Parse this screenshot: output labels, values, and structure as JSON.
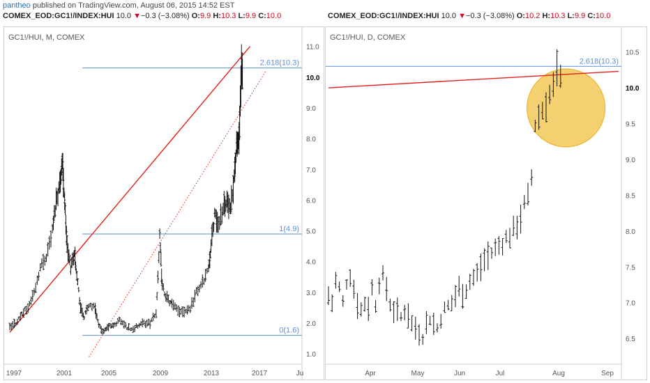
{
  "attribution": {
    "user": "pantheo",
    "text": " published on TradingView.com, August 06, 2015 14:52 EST"
  },
  "left_header": {
    "symbol": "COMEX_EOD:GC1!/INDEX:HUI",
    "last": "10.0",
    "change": "−0.3 (−3.08%)",
    "o_label": "O:",
    "o_val": "9.9",
    "h_label": "H:",
    "h_val": "10.3",
    "l_label": "L:",
    "l_val": "9.9",
    "c_label": "C:",
    "c_val": "10.0"
  },
  "right_header": {
    "symbol": "COMEX_EOD:GC1!/INDEX:HUI",
    "last": "10.0",
    "change": "−0.3 (−3.08%)",
    "o_label": "O:",
    "o_val": "10.2",
    "h_label": "H:",
    "h_val": "10.3",
    "l_label": "L:",
    "l_val": "9.9",
    "c_label": "C:",
    "c_val": "10.0"
  },
  "colors": {
    "price": "#111111",
    "trendline": "#e0201b",
    "fib": "#5b8fd6",
    "highlight": "#f0c040",
    "down_arrow": "#d0021b"
  },
  "chart_data": [
    {
      "type": "bar",
      "title": "GC1!/HUI, M, COMEX",
      "x_ticks": [
        "1997",
        "2001",
        "2005",
        "2009",
        "2013",
        "2017",
        "Ju"
      ],
      "y_ticks": [
        "1.0",
        "2.0",
        "3.0",
        "4.0",
        "5.0",
        "6.0",
        "7.0",
        "8.0",
        "9.0",
        "10.0",
        "11.0"
      ],
      "ylim": [
        0.8,
        11.4
      ],
      "last_price_label": "10.0",
      "fib_levels": [
        {
          "label": "2.618(10.3)",
          "value": 10.3
        },
        {
          "label": "1(4.9)",
          "value": 4.9
        },
        {
          "label": "0(1.6)",
          "value": 1.6
        }
      ],
      "trendline_solid": [
        [
          1996.5,
          1.7
        ],
        [
          2016.2,
          11.0
        ]
      ],
      "trendline_dotted": [
        [
          2003.0,
          0.9
        ],
        [
          2017.5,
          10.2
        ]
      ],
      "series": [
        {
          "values": [
            [
              1996.5,
              1.85
            ],
            [
              1997.0,
              2.0
            ],
            [
              1997.5,
              2.3
            ],
            [
              1998.0,
              2.5
            ],
            [
              1998.5,
              3.0
            ],
            [
              1999.0,
              3.8
            ],
            [
              1999.5,
              4.2
            ],
            [
              2000.0,
              5.0
            ],
            [
              2000.3,
              6.0
            ],
            [
              2000.6,
              6.5
            ],
            [
              2000.8,
              7.3
            ],
            [
              2001.0,
              6.0
            ],
            [
              2001.2,
              4.5
            ],
            [
              2001.5,
              3.8
            ],
            [
              2001.8,
              4.3
            ],
            [
              2002.0,
              3.6
            ],
            [
              2002.3,
              2.5
            ],
            [
              2002.6,
              2.2
            ],
            [
              2003.0,
              2.6
            ],
            [
              2003.5,
              2.5
            ],
            [
              2003.8,
              1.9
            ],
            [
              2004.2,
              1.7
            ],
            [
              2004.6,
              1.9
            ],
            [
              2005.0,
              1.9
            ],
            [
              2005.5,
              2.1
            ],
            [
              2006.0,
              1.9
            ],
            [
              2006.5,
              1.8
            ],
            [
              2007.0,
              1.9
            ],
            [
              2007.5,
              2.0
            ],
            [
              2008.0,
              2.0
            ],
            [
              2008.5,
              2.3
            ],
            [
              2008.8,
              4.8
            ],
            [
              2009.0,
              3.2
            ],
            [
              2009.4,
              2.8
            ],
            [
              2009.8,
              2.6
            ],
            [
              2010.3,
              2.4
            ],
            [
              2010.8,
              2.4
            ],
            [
              2011.3,
              2.5
            ],
            [
              2011.8,
              3.0
            ],
            [
              2012.3,
              3.3
            ],
            [
              2012.8,
              3.8
            ],
            [
              2013.0,
              4.5
            ],
            [
              2013.3,
              5.5
            ],
            [
              2013.6,
              5.2
            ],
            [
              2014.0,
              5.8
            ],
            [
              2014.3,
              6.0
            ],
            [
              2014.6,
              5.6
            ],
            [
              2014.9,
              6.8
            ],
            [
              2015.1,
              7.7
            ],
            [
              2015.3,
              8.0
            ],
            [
              2015.5,
              10.1
            ],
            [
              2015.6,
              10.0
            ]
          ]
        }
      ]
    },
    {
      "type": "bar",
      "title": "GC1!/HUI, D, COMEX",
      "x_ticks": [
        "Apr",
        "May",
        "Jun",
        "Jul",
        "Aug",
        "Sep"
      ],
      "y_ticks": [
        "6.5",
        "7.0",
        "7.5",
        "8.0",
        "8.5",
        "9.0",
        "9.5",
        "10.0",
        "10.5"
      ],
      "ylim": [
        6.2,
        10.75
      ],
      "last_price_label": "10.0",
      "fib_levels": [
        {
          "label": "2.618(10.3)",
          "value": 10.3
        }
      ],
      "trendline_solid": [
        [
          0,
          10.0
        ],
        [
          160,
          10.23
        ]
      ],
      "highlight": {
        "x_center": 131,
        "y_center": 9.72,
        "shape": "circle"
      },
      "series": [
        {
          "values": [
            [
              0,
              7.1
            ],
            [
              2,
              7.0
            ],
            [
              4,
              7.3
            ],
            [
              6,
              7.2
            ],
            [
              8,
              7.0
            ],
            [
              10,
              7.3
            ],
            [
              12,
              7.4
            ],
            [
              14,
              7.2
            ],
            [
              16,
              7.0
            ],
            [
              18,
              6.9
            ],
            [
              20,
              7.0
            ],
            [
              22,
              6.95
            ],
            [
              24,
              7.2
            ],
            [
              26,
              7.0
            ],
            [
              28,
              7.3
            ],
            [
              30,
              7.35
            ],
            [
              32,
              7.2
            ],
            [
              34,
              7.0
            ],
            [
              36,
              6.9
            ],
            [
              38,
              6.85
            ],
            [
              40,
              6.8
            ],
            [
              42,
              6.9
            ],
            [
              44,
              6.85
            ],
            [
              46,
              6.7
            ],
            [
              48,
              6.65
            ],
            [
              50,
              6.6
            ],
            [
              52,
              6.55
            ],
            [
              54,
              6.7
            ],
            [
              56,
              6.8
            ],
            [
              58,
              6.7
            ],
            [
              60,
              6.65
            ],
            [
              62,
              6.8
            ],
            [
              64,
              6.9
            ],
            [
              66,
              6.95
            ],
            [
              68,
              7.0
            ],
            [
              70,
              7.1
            ],
            [
              72,
              7.2
            ],
            [
              74,
              7.15
            ],
            [
              76,
              7.2
            ],
            [
              78,
              7.3
            ],
            [
              80,
              7.35
            ],
            [
              82,
              7.4
            ],
            [
              84,
              7.5
            ],
            [
              86,
              7.6
            ],
            [
              88,
              7.65
            ],
            [
              90,
              7.7
            ],
            [
              92,
              7.75
            ],
            [
              94,
              7.8
            ],
            [
              96,
              7.85
            ],
            [
              98,
              7.9
            ],
            [
              100,
              7.95
            ],
            [
              102,
              8.0
            ],
            [
              104,
              8.1
            ],
            [
              106,
              8.2
            ],
            [
              108,
              8.35
            ],
            [
              110,
              8.45
            ],
            [
              112,
              8.75
            ],
            [
              114,
              9.5
            ],
            [
              116,
              9.6
            ],
            [
              118,
              9.7
            ],
            [
              120,
              9.8
            ],
            [
              122,
              9.9
            ],
            [
              124,
              10.0
            ],
            [
              126,
              10.2
            ],
            [
              128,
              10.1
            ],
            [
              130,
              10.0
            ]
          ]
        }
      ]
    }
  ]
}
